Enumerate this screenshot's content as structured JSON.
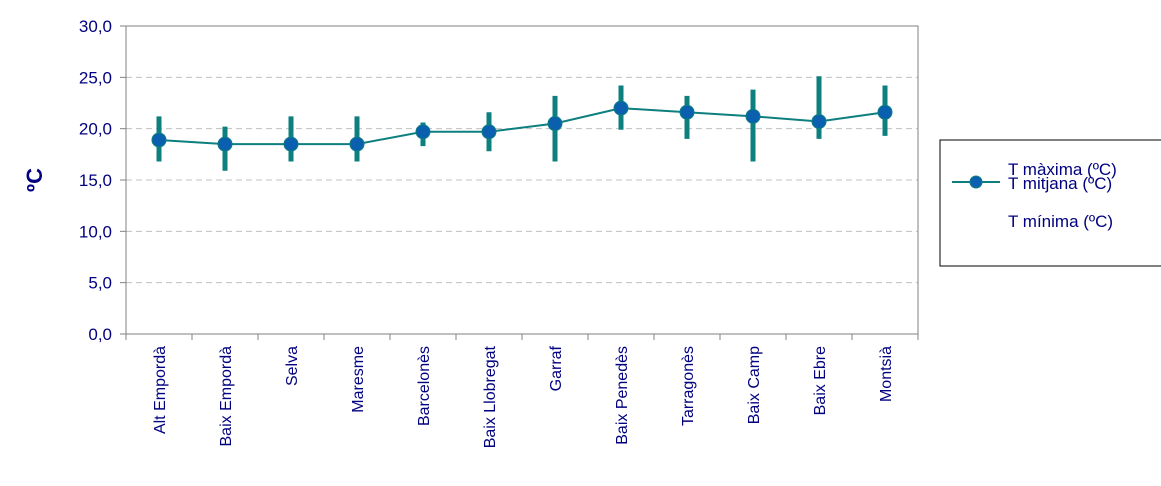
{
  "chart_data": {
    "type": "line",
    "ylabel": "ºC",
    "ylim": [
      0,
      30
    ],
    "ytick_labels": [
      "0,0",
      "5,0",
      "10,0",
      "15,0",
      "20,0",
      "25,0",
      "30,0"
    ],
    "grid": true,
    "legend_position": "right",
    "categories": [
      "Alt Empordà",
      "Baix Empordà",
      "Selva",
      "Maresme",
      "Barcelonès",
      "Baix Llobregat",
      "Garraf",
      "Baix Penedès",
      "Tarragonès",
      "Baix Camp",
      "Baix Ebre",
      "Montsià"
    ],
    "series": [
      {
        "name": "T màxima (ºC)",
        "values": [
          21.2,
          20.2,
          21.2,
          21.2,
          20.6,
          21.6,
          23.2,
          24.2,
          23.2,
          23.8,
          25.1,
          24.2
        ]
      },
      {
        "name": "T mitjana (ºC)",
        "values": [
          18.9,
          18.5,
          18.5,
          18.5,
          19.7,
          19.7,
          20.5,
          22.0,
          21.6,
          21.2,
          20.7,
          21.6
        ]
      },
      {
        "name": "T mínima (ºC)",
        "values": [
          16.8,
          15.9,
          16.8,
          16.8,
          18.3,
          17.8,
          16.8,
          19.9,
          19.0,
          16.8,
          19.0,
          19.3
        ]
      }
    ],
    "colors": {
      "range": "#0d7f7f",
      "mean_line": "#0d7f7f",
      "mean_marker": "#0a5fae",
      "text": "#000080",
      "grid": "#c0c0c0"
    }
  }
}
